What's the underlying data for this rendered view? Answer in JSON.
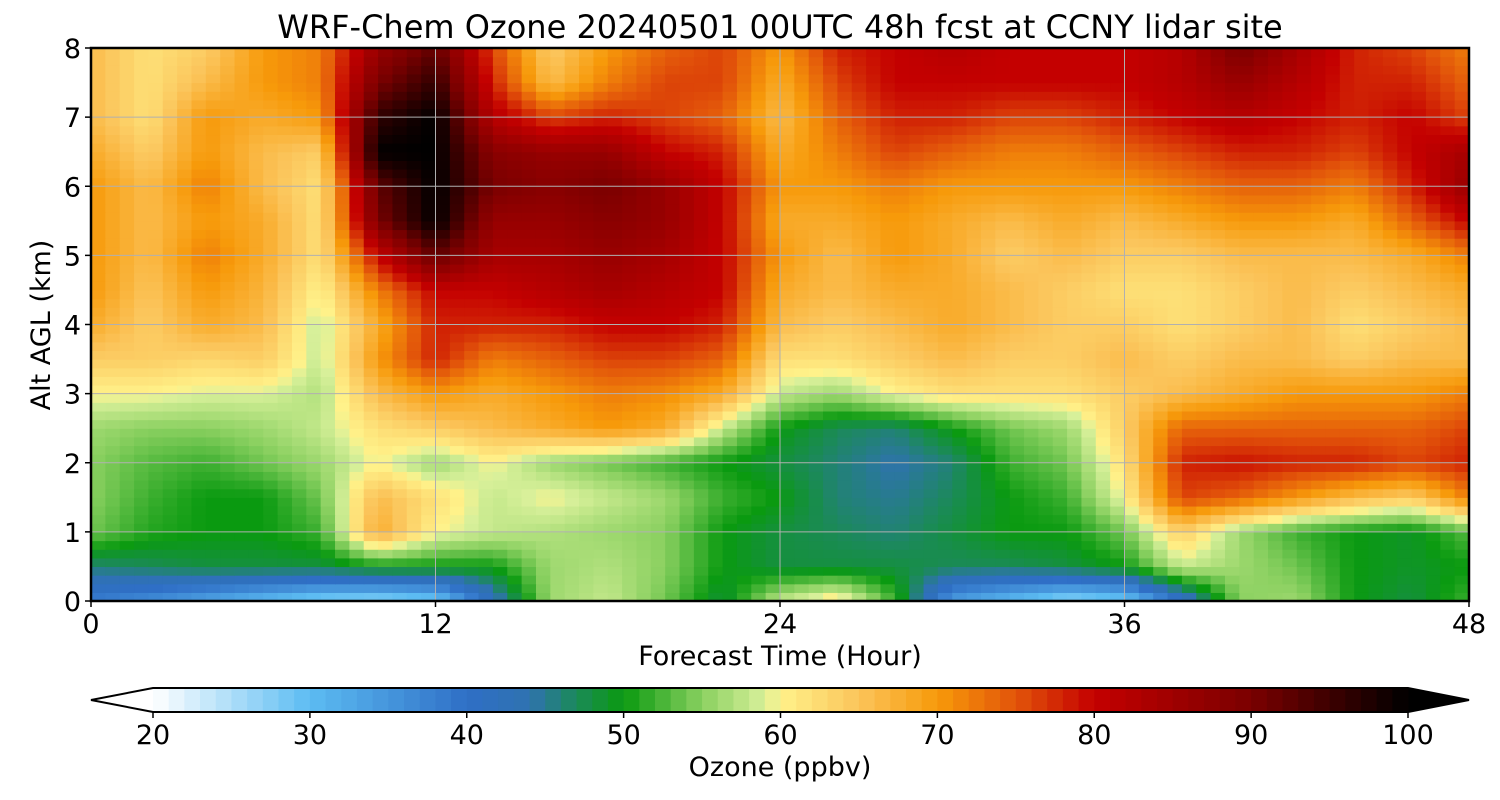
{
  "chart_data": {
    "type": "heatmap",
    "title": "WRF-Chem Ozone  20240501 00UTC 48h fcst at CCNY lidar site",
    "xlabel": "Forecast Time (Hour)",
    "ylabel": "Alt AGL (km)",
    "xlim": [
      0,
      48
    ],
    "ylim": [
      0,
      8
    ],
    "xticks": [
      "0",
      "12",
      "24",
      "36",
      "48"
    ],
    "yticks": [
      "0",
      "1",
      "2",
      "3",
      "4",
      "5",
      "6",
      "7",
      "8"
    ],
    "grid": true,
    "colorbar": {
      "label": "Ozone  (ppbv)",
      "min": 20,
      "max": 100,
      "ticks": [
        "20",
        "30",
        "40",
        "50",
        "60",
        "70",
        "80",
        "90",
        "100"
      ],
      "extend": "both",
      "placement": "bottom",
      "colors": [
        {
          "v": 20,
          "c": "#ffffff"
        },
        {
          "v": 30,
          "c": "#5cbcf2"
        },
        {
          "v": 40,
          "c": "#2f6fc6"
        },
        {
          "v": 44,
          "c": "#2f72b0"
        },
        {
          "v": 47,
          "c": "#1b8a58"
        },
        {
          "v": 50,
          "c": "#0a9a10"
        },
        {
          "v": 55,
          "c": "#8ad060"
        },
        {
          "v": 59,
          "c": "#d8f09a"
        },
        {
          "v": 60,
          "c": "#fff28a"
        },
        {
          "v": 65,
          "c": "#fbc45a"
        },
        {
          "v": 70,
          "c": "#f79a0a"
        },
        {
          "v": 75,
          "c": "#e2540a"
        },
        {
          "v": 80,
          "c": "#c40000"
        },
        {
          "v": 90,
          "c": "#7a0000"
        },
        {
          "v": 100,
          "c": "#000000"
        }
      ]
    },
    "x_hours": [
      0,
      2,
      4,
      6,
      8,
      10,
      12,
      14,
      16,
      18,
      20,
      22,
      24,
      26,
      28,
      30,
      32,
      34,
      36,
      38,
      40,
      42,
      44,
      46,
      48
    ],
    "y_km": [
      0,
      0.5,
      1,
      1.5,
      2,
      2.5,
      3,
      3.5,
      4,
      4.5,
      5,
      5.5,
      6,
      6.5,
      7,
      7.5,
      8
    ],
    "ozone_ppbv": [
      [
        38,
        36,
        33,
        30,
        27,
        26,
        28,
        42,
        56,
        58,
        54,
        48,
        58,
        62,
        52,
        34,
        30,
        26,
        28,
        40,
        55,
        56,
        50,
        48,
        52
      ],
      [
        46,
        47,
        48,
        48,
        48,
        50,
        50,
        50,
        56,
        57,
        55,
        50,
        48,
        48,
        48,
        47,
        47,
        48,
        50,
        58,
        56,
        54,
        50,
        49,
        50
      ],
      [
        54,
        51,
        50,
        50,
        52,
        68,
        60,
        58,
        57,
        56,
        55,
        50,
        48,
        47,
        46,
        48,
        50,
        50,
        54,
        64,
        56,
        52,
        50,
        49,
        53
      ],
      [
        55,
        52,
        50,
        50,
        54,
        66,
        62,
        58,
        60,
        58,
        56,
        52,
        50,
        46,
        45,
        47,
        50,
        52,
        60,
        76,
        74,
        70,
        66,
        64,
        72
      ],
      [
        55,
        53,
        52,
        54,
        56,
        60,
        56,
        60,
        56,
        54,
        52,
        50,
        48,
        46,
        44,
        46,
        52,
        54,
        62,
        78,
        79,
        78,
        78,
        76,
        78
      ],
      [
        56,
        55,
        55,
        56,
        58,
        62,
        64,
        66,
        68,
        70,
        68,
        58,
        50,
        47,
        46,
        50,
        54,
        56,
        64,
        74,
        74,
        74,
        74,
        74,
        76
      ],
      [
        60,
        60,
        59,
        59,
        57,
        66,
        70,
        68,
        70,
        72,
        71,
        68,
        58,
        56,
        60,
        62,
        62,
        62,
        64,
        66,
        68,
        70,
        70,
        70,
        72
      ],
      [
        64,
        64,
        63,
        64,
        58,
        70,
        78,
        72,
        74,
        76,
        76,
        74,
        62,
        62,
        64,
        66,
        64,
        64,
        66,
        64,
        66,
        66,
        64,
        66,
        66
      ],
      [
        68,
        64,
        68,
        66,
        58,
        68,
        78,
        78,
        78,
        80,
        80,
        78,
        66,
        64,
        66,
        68,
        66,
        64,
        64,
        62,
        64,
        66,
        62,
        64,
        66
      ],
      [
        70,
        65,
        70,
        67,
        60,
        72,
        80,
        80,
        82,
        84,
        82,
        80,
        68,
        66,
        68,
        68,
        66,
        64,
        62,
        62,
        64,
        66,
        64,
        66,
        68
      ],
      [
        70,
        66,
        72,
        68,
        62,
        80,
        92,
        84,
        84,
        86,
        84,
        80,
        70,
        66,
        70,
        68,
        64,
        66,
        64,
        64,
        66,
        66,
        66,
        68,
        72
      ],
      [
        70,
        66,
        70,
        68,
        62,
        90,
        100,
        86,
        86,
        88,
        86,
        80,
        68,
        68,
        70,
        68,
        66,
        68,
        66,
        68,
        70,
        70,
        68,
        74,
        80
      ],
      [
        70,
        66,
        72,
        66,
        62,
        92,
        100,
        90,
        88,
        90,
        86,
        80,
        70,
        70,
        72,
        70,
        70,
        70,
        70,
        72,
        74,
        74,
        72,
        78,
        86
      ],
      [
        68,
        64,
        70,
        66,
        64,
        100,
        100,
        88,
        86,
        86,
        80,
        78,
        68,
        72,
        76,
        74,
        72,
        72,
        74,
        76,
        78,
        78,
        76,
        80,
        84
      ],
      [
        66,
        62,
        70,
        68,
        70,
        96,
        100,
        82,
        76,
        78,
        76,
        74,
        66,
        74,
        78,
        78,
        76,
        76,
        78,
        80,
        82,
        80,
        78,
        80,
        76
      ],
      [
        66,
        62,
        66,
        70,
        72,
        90,
        96,
        78,
        66,
        72,
        76,
        76,
        68,
        76,
        80,
        80,
        80,
        80,
        80,
        82,
        86,
        82,
        78,
        78,
        74
      ],
      [
        66,
        62,
        64,
        70,
        72,
        86,
        92,
        76,
        64,
        70,
        74,
        76,
        70,
        78,
        80,
        82,
        80,
        80,
        80,
        82,
        90,
        84,
        78,
        76,
        72
      ]
    ]
  }
}
